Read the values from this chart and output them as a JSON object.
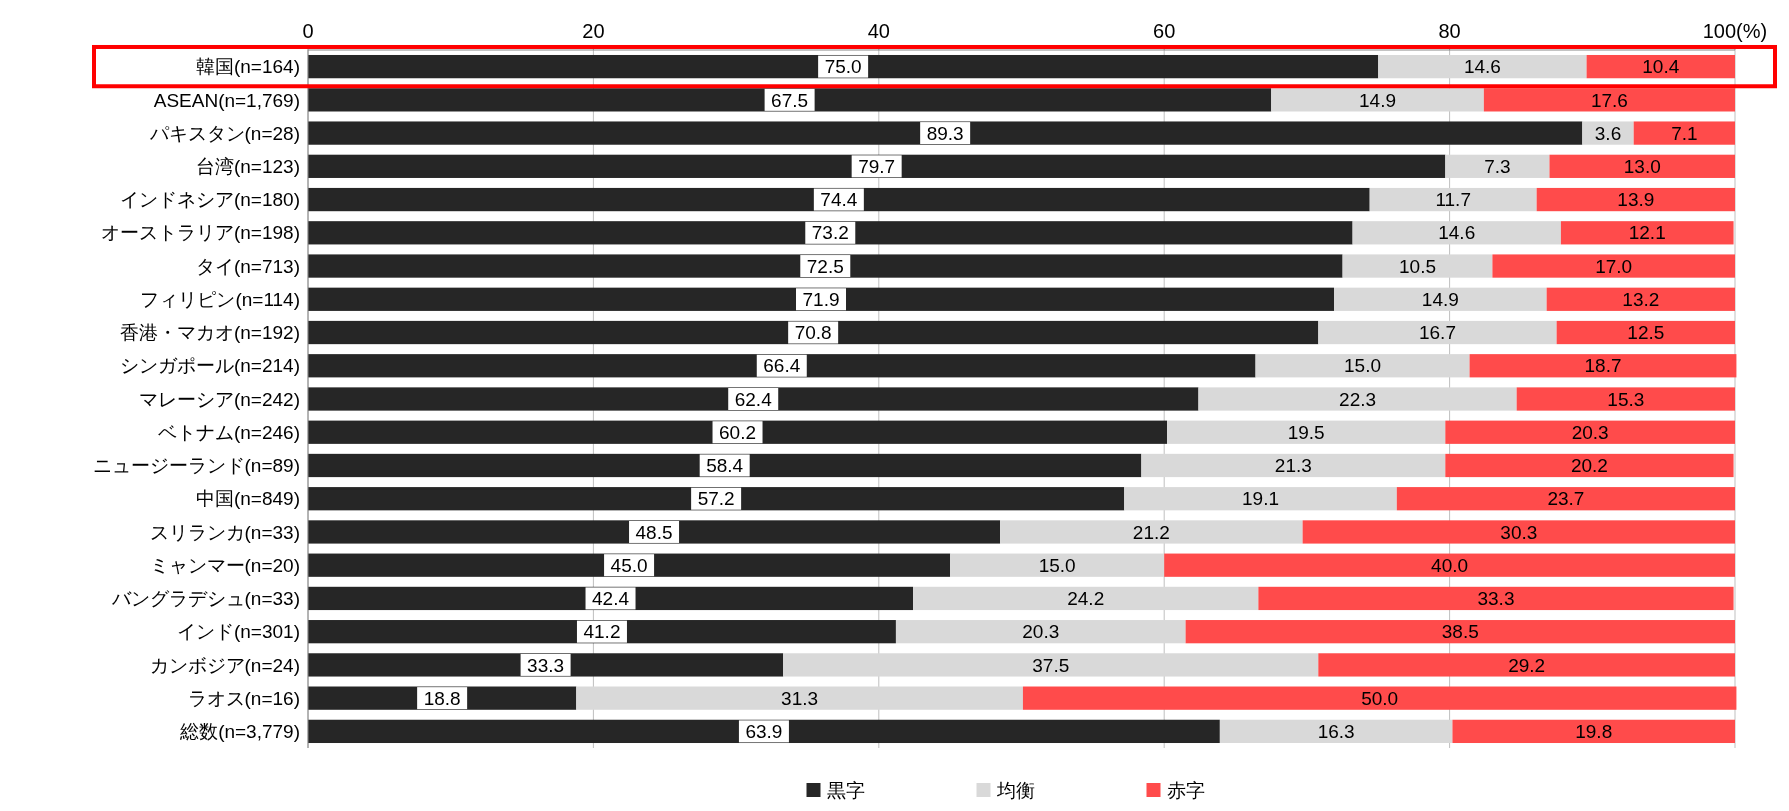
{
  "chart_data": {
    "type": "bar",
    "orientation": "horizontal",
    "stacked": true,
    "categories": [
      "韓国(n=164)",
      "ASEAN(n=1,769)",
      "パキスタン(n=28)",
      "台湾(n=123)",
      "インドネシア(n=180)",
      "オーストラリア(n=198)",
      "タイ(n=713)",
      "フィリピン(n=114)",
      "香港・マカオ(n=192)",
      "シンガポール(n=214)",
      "マレーシア(n=242)",
      "ベトナム(n=246)",
      "ニュージーランド(n=89)",
      "中国(n=849)",
      "スリランカ(n=33)",
      "ミャンマー(n=20)",
      "バングラデシュ(n=33)",
      "インド(n=301)",
      "カンボジア(n=24)",
      "ラオス(n=16)",
      "総数(n=3,779)"
    ],
    "series": [
      {
        "name": "黒字",
        "color": "#262626",
        "values": [
          75.0,
          67.5,
          89.3,
          79.7,
          74.4,
          73.2,
          72.5,
          71.9,
          70.8,
          66.4,
          62.4,
          60.2,
          58.4,
          57.2,
          48.5,
          45.0,
          42.4,
          41.2,
          33.3,
          18.8,
          63.9
        ],
        "value_labels": [
          "75.0",
          "67.5",
          "89.3",
          "79.7",
          "74.4",
          "73.2",
          "72.5",
          "71.9",
          "70.8",
          "66.4",
          "62.4",
          "60.2",
          "58.4",
          "57.2",
          "48.5",
          "45.0",
          "42.4",
          "41.2",
          "33.3",
          "18.8",
          "63.9"
        ]
      },
      {
        "name": "均衡",
        "color": "#d9d9d9",
        "values": [
          14.6,
          14.9,
          3.6,
          7.3,
          11.7,
          14.6,
          10.5,
          14.9,
          16.7,
          15.0,
          22.3,
          19.5,
          21.3,
          19.1,
          21.2,
          15.0,
          24.2,
          20.3,
          37.5,
          31.3,
          16.3
        ],
        "value_labels": [
          "14.6",
          "14.9",
          "3.6",
          "7.3",
          "11.7",
          "14.6",
          "10.5",
          "14.9",
          "16.7",
          "15.0",
          "22.3",
          "19.5",
          "21.3",
          "19.1",
          "21.2",
          "15.0",
          "24.2",
          "20.3",
          "37.5",
          "31.3",
          "16.3"
        ]
      },
      {
        "name": "赤字",
        "color": "#ff4b4b",
        "values": [
          10.4,
          17.6,
          7.1,
          13.0,
          13.9,
          12.1,
          17.0,
          13.2,
          12.5,
          18.7,
          15.3,
          20.3,
          20.2,
          23.7,
          30.3,
          40.0,
          33.3,
          38.5,
          29.2,
          50.0,
          19.8
        ],
        "value_labels": [
          "10.4",
          "17.6",
          "7.1",
          "13.0",
          "13.9",
          "12.1",
          "17.0",
          "13.2",
          "12.5",
          "18.7",
          "15.3",
          "20.3",
          "20.2",
          "23.7",
          "30.3",
          "40.0",
          "33.3",
          "38.5",
          "29.2",
          "50.0",
          "19.8"
        ]
      }
    ],
    "xlim": [
      0,
      100
    ],
    "xticks": [
      0,
      20,
      40,
      60,
      80,
      {
        "value": 100,
        "label": "100(%)"
      }
    ],
    "grid": "x",
    "legend": "bottom"
  }
}
